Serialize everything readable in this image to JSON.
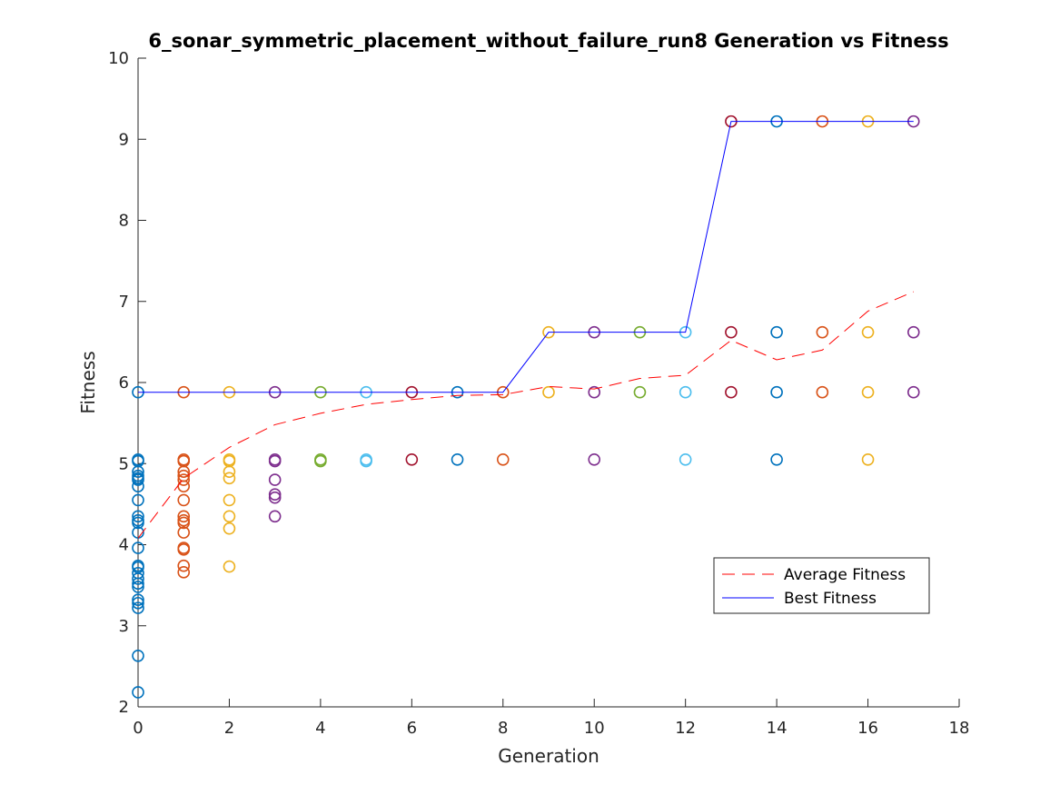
{
  "chart_data": {
    "type": "scatter",
    "title": "6_sonar_symmetric_placement_without_failure_run8 Generation vs Fitness",
    "xlabel": "Generation",
    "ylabel": "Fitness",
    "xlim": [
      0,
      18
    ],
    "ylim": [
      2,
      10
    ],
    "xticks": [
      0,
      2,
      4,
      6,
      8,
      10,
      12,
      14,
      16,
      18
    ],
    "yticks": [
      2,
      3,
      4,
      5,
      6,
      7,
      8,
      9,
      10
    ],
    "grid": false,
    "legend_position": "lower-right",
    "marker_colors": [
      "#0072BD",
      "#D95319",
      "#EDB120",
      "#7E2F8E",
      "#77AC30",
      "#4DBEEE",
      "#A2142F"
    ],
    "points": [
      {
        "gen": 0,
        "fitness": [
          5.88,
          5.05,
          5.03,
          4.9,
          4.85,
          4.82,
          4.8,
          4.72,
          4.55,
          4.35,
          4.3,
          4.27,
          4.15,
          3.96,
          3.74,
          3.72,
          3.65,
          3.58,
          3.52,
          3.48,
          3.32,
          3.28,
          3.22,
          2.63,
          2.18
        ]
      },
      {
        "gen": 1,
        "fitness": [
          5.88,
          5.05,
          5.03,
          4.9,
          4.85,
          4.8,
          4.72,
          4.55,
          4.35,
          4.3,
          4.27,
          4.15,
          3.96,
          3.94,
          3.74,
          3.66
        ]
      },
      {
        "gen": 2,
        "fitness": [
          5.88,
          5.05,
          5.03,
          4.9,
          4.82,
          4.55,
          4.35,
          4.2,
          3.73
        ]
      },
      {
        "gen": 3,
        "fitness": [
          5.88,
          5.05,
          5.03,
          4.8,
          4.62,
          4.58,
          4.35
        ]
      },
      {
        "gen": 4,
        "fitness": [
          5.88,
          5.05,
          5.03
        ]
      },
      {
        "gen": 5,
        "fitness": [
          5.88,
          5.05,
          5.03
        ]
      },
      {
        "gen": 6,
        "fitness": [
          5.88,
          5.05
        ]
      },
      {
        "gen": 7,
        "fitness": [
          5.88,
          5.05
        ]
      },
      {
        "gen": 8,
        "fitness": [
          5.88,
          5.05
        ]
      },
      {
        "gen": 9,
        "fitness": [
          6.62,
          5.88
        ]
      },
      {
        "gen": 10,
        "fitness": [
          6.62,
          5.88,
          5.05
        ]
      },
      {
        "gen": 11,
        "fitness": [
          6.62,
          5.88
        ]
      },
      {
        "gen": 12,
        "fitness": [
          6.62,
          5.88,
          5.05
        ]
      },
      {
        "gen": 13,
        "fitness": [
          9.22,
          6.62,
          5.88
        ]
      },
      {
        "gen": 14,
        "fitness": [
          9.22,
          6.62,
          5.88,
          5.05
        ]
      },
      {
        "gen": 15,
        "fitness": [
          9.22,
          6.62,
          5.88
        ]
      },
      {
        "gen": 16,
        "fitness": [
          9.22,
          6.62,
          5.88,
          5.05
        ]
      },
      {
        "gen": 17,
        "fitness": [
          9.22,
          6.62,
          5.88
        ]
      }
    ],
    "series": [
      {
        "name": "Average Fitness",
        "style": "dashed",
        "color": "#FF0000",
        "x": [
          0,
          1,
          2,
          3,
          4,
          5,
          6,
          7,
          8,
          9,
          10,
          11,
          12,
          13,
          14,
          15,
          16,
          17
        ],
        "y": [
          4.08,
          4.82,
          5.2,
          5.48,
          5.62,
          5.73,
          5.79,
          5.84,
          5.85,
          5.95,
          5.92,
          6.05,
          6.09,
          6.52,
          6.28,
          6.4,
          6.88,
          7.12
        ]
      },
      {
        "name": "Best Fitness",
        "style": "solid",
        "color": "#0000FF",
        "x": [
          0,
          1,
          2,
          3,
          4,
          5,
          6,
          7,
          8,
          9,
          10,
          11,
          12,
          13,
          14,
          15,
          16,
          17
        ],
        "y": [
          5.88,
          5.88,
          5.88,
          5.88,
          5.88,
          5.88,
          5.88,
          5.88,
          5.88,
          6.62,
          6.62,
          6.62,
          6.62,
          9.22,
          9.22,
          9.22,
          9.22,
          9.22
        ]
      }
    ]
  }
}
